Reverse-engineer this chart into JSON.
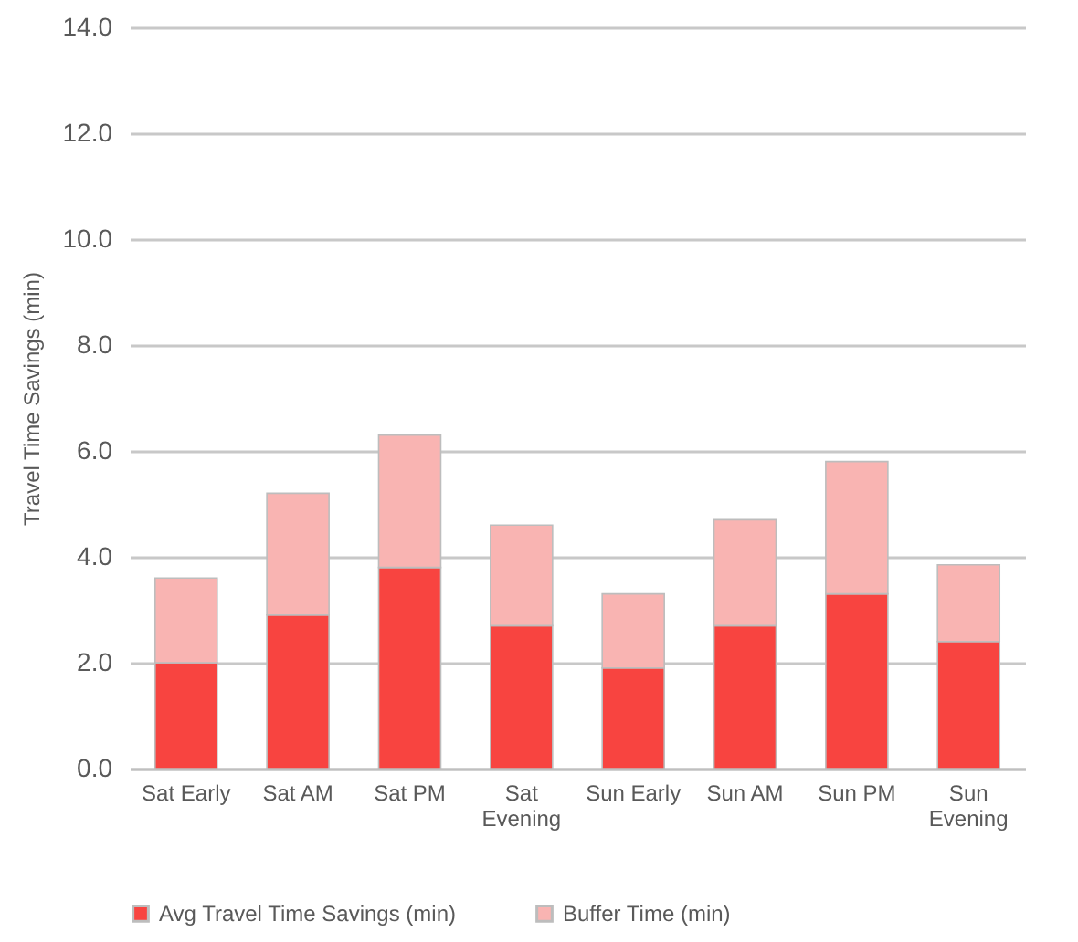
{
  "chart_data": {
    "type": "bar",
    "stacked": true,
    "ylabel": "Travel Time Savings (min)",
    "categories": [
      "Sat Early",
      "Sat AM",
      "Sat PM",
      "Sat Evening",
      "Sun Early",
      "Sun AM",
      "Sun PM",
      "Sun Evening"
    ],
    "series": [
      {
        "name": "Avg Travel Time Savings (min)",
        "color": "#f84440",
        "values": [
          2.0,
          2.9,
          3.8,
          2.7,
          1.9,
          2.7,
          3.3,
          2.4
        ]
      },
      {
        "name": "Buffer Time (min)",
        "color": "#f9b4b2",
        "values": [
          1.6,
          2.3,
          2.5,
          1.9,
          1.4,
          2.0,
          2.5,
          1.45
        ]
      }
    ],
    "ylim": [
      0,
      14
    ],
    "yticks": [
      {
        "value": 0,
        "label": "0.0"
      },
      {
        "value": 2,
        "label": "2.0"
      },
      {
        "value": 4,
        "label": "4.0"
      },
      {
        "value": 6,
        "label": "6.0"
      },
      {
        "value": 8,
        "label": "8.0"
      },
      {
        "value": 10,
        "label": "10.0"
      },
      {
        "value": 12,
        "label": "12.0"
      },
      {
        "value": 14,
        "label": "14.0"
      }
    ],
    "grid": "y",
    "legend": "bottom"
  }
}
